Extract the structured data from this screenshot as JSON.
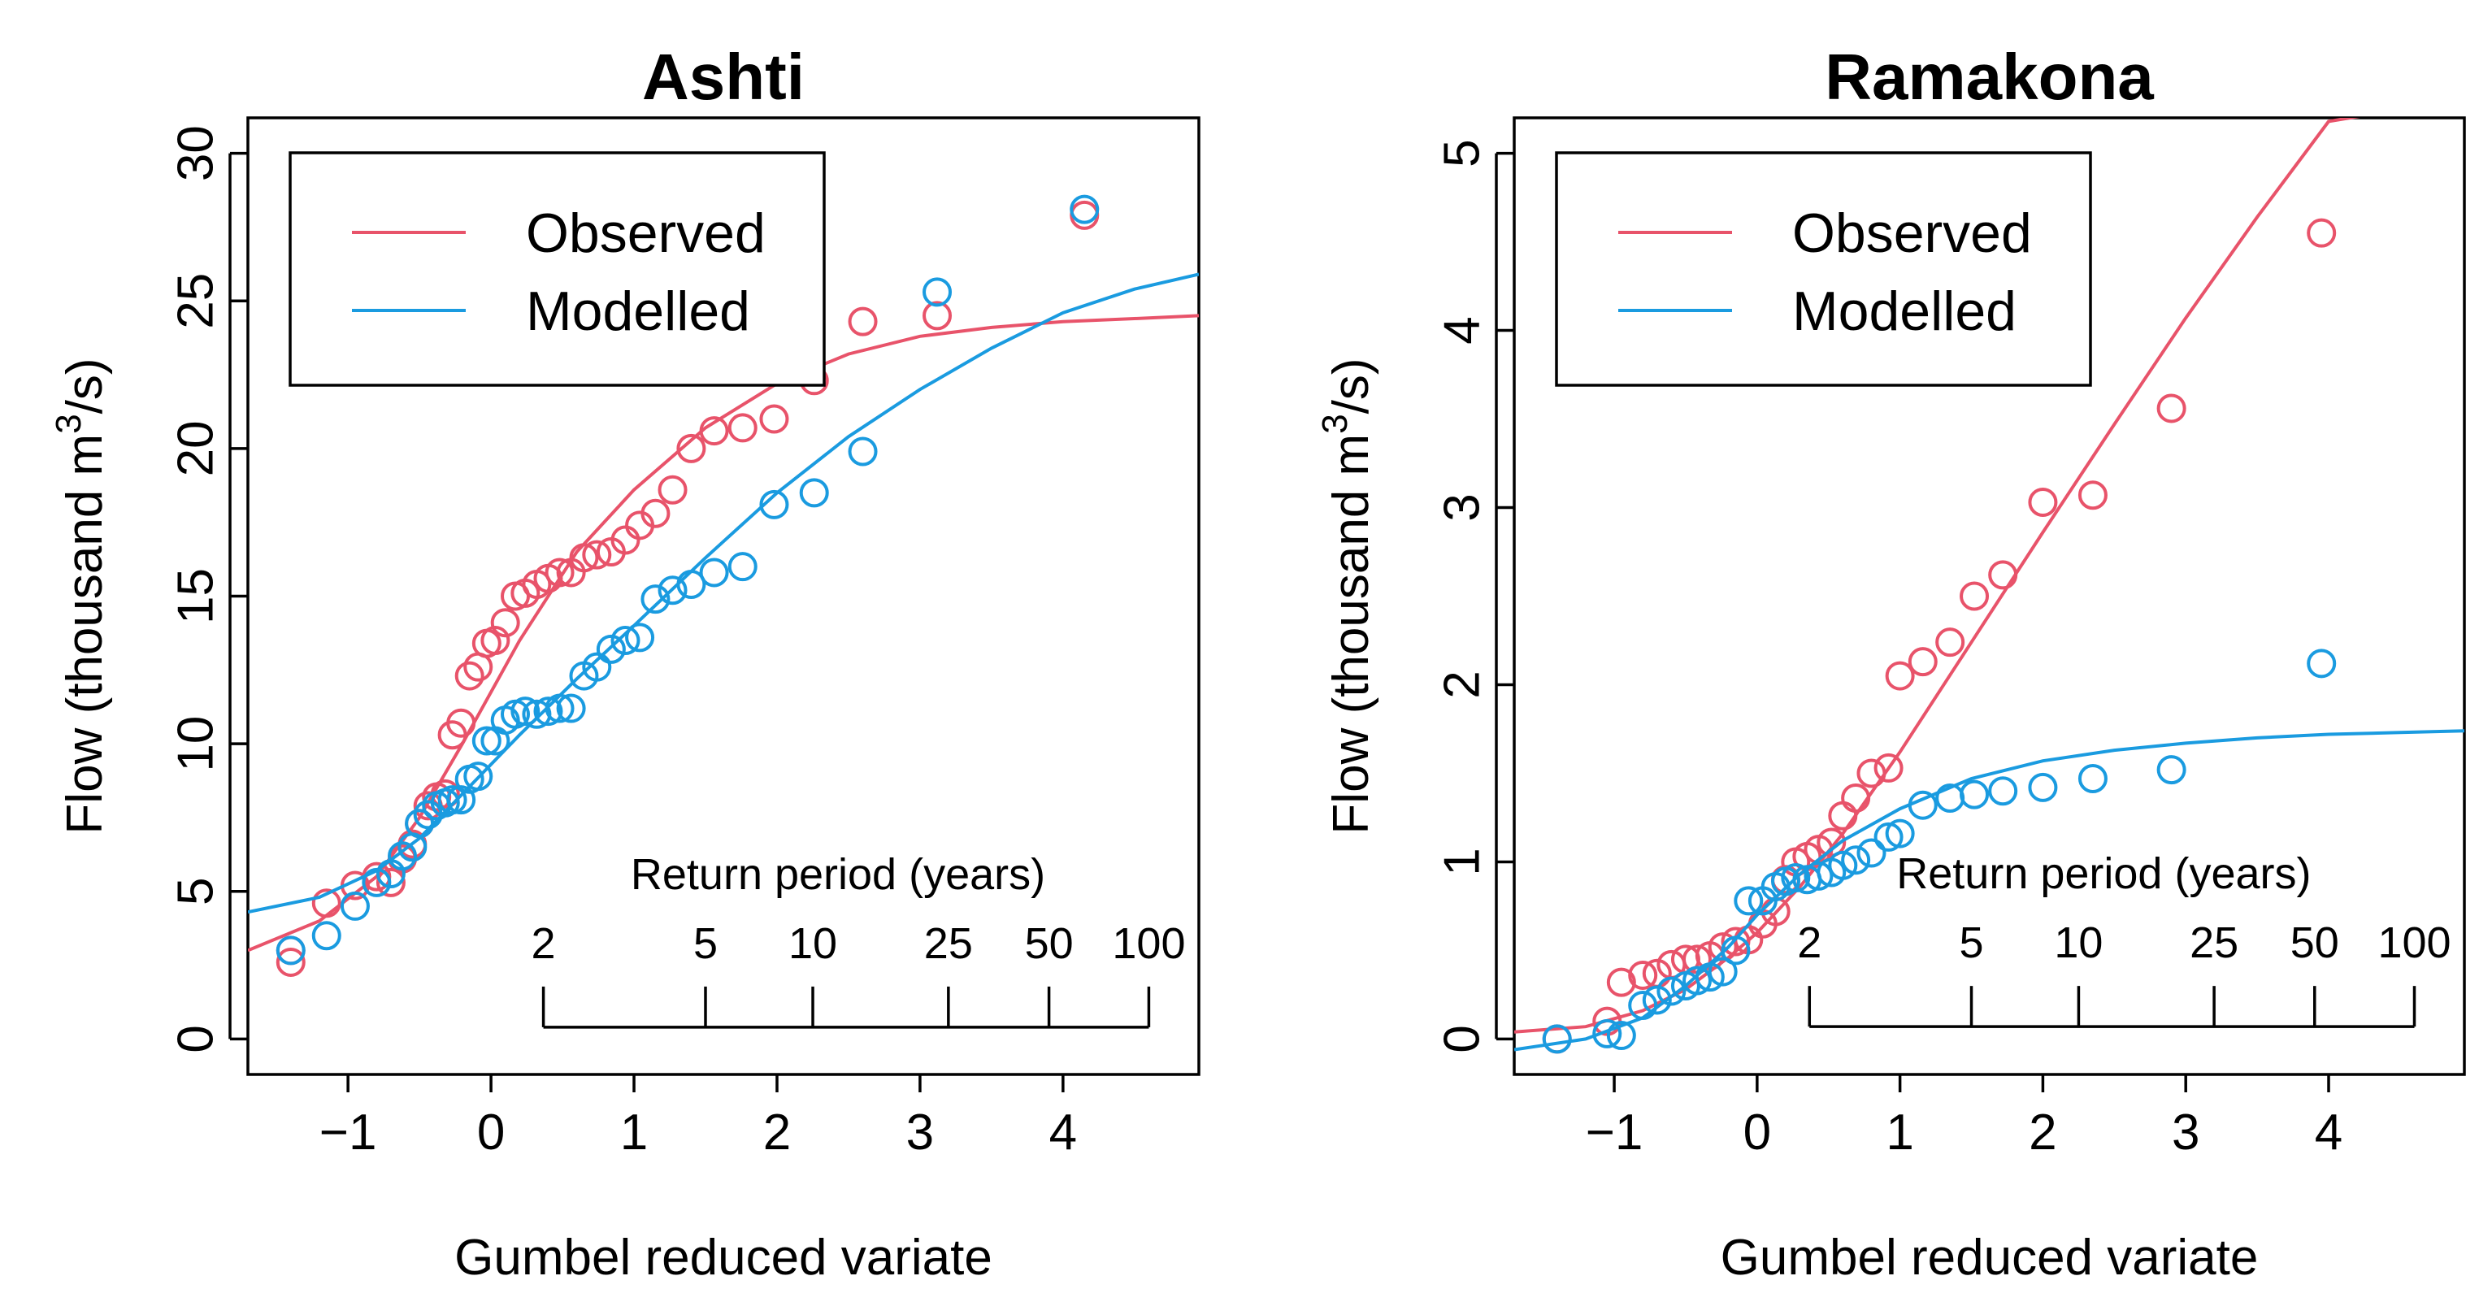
{
  "chart_data": [
    {
      "type": "scatter",
      "title": "Ashti",
      "xlabel": "Gumbel reduced variate",
      "ylabel_main": "Flow (thousand m",
      "ylabel_sup": "3",
      "ylabel_end": "/s)",
      "xlim": [
        -1.7,
        4.95
      ],
      "ylim": [
        -1.2,
        31.2
      ],
      "xticks": [
        "-1",
        "0",
        "1",
        "2",
        "3",
        "4"
      ],
      "xtick_values": [
        -1,
        0,
        1,
        2,
        3,
        4
      ],
      "yticks": [
        "0",
        "5",
        "10",
        "15",
        "20",
        "25",
        "30"
      ],
      "ytick_values": [
        0,
        5,
        10,
        15,
        20,
        25,
        30
      ],
      "legend": {
        "position": "top-left",
        "entries": [
          "Observed",
          "Modelled"
        ]
      },
      "return_period": {
        "title": "Return period (years)",
        "labels": [
          "2",
          "5",
          "10",
          "25",
          "50",
          "100"
        ],
        "years": [
          2,
          5,
          10,
          25,
          50,
          100
        ],
        "bar_y": 0.4
      },
      "series": [
        {
          "name": "Observed",
          "color": "#E8536A",
          "points": [
            [
              -1.4,
              2.6
            ],
            [
              -1.4,
              3.0
            ],
            [
              -1.15,
              4.6
            ],
            [
              -0.95,
              5.2
            ],
            [
              -0.8,
              5.5
            ],
            [
              -0.7,
              5.3
            ],
            [
              -0.62,
              6.1
            ],
            [
              -0.55,
              6.6
            ],
            [
              -0.5,
              7.3
            ],
            [
              -0.44,
              7.9
            ],
            [
              -0.38,
              8.2
            ],
            [
              -0.32,
              8.3
            ],
            [
              -0.27,
              10.3
            ],
            [
              -0.21,
              10.7
            ],
            [
              -0.15,
              12.3
            ],
            [
              -0.09,
              12.6
            ],
            [
              -0.03,
              13.4
            ],
            [
              0.03,
              13.5
            ],
            [
              0.1,
              14.1
            ],
            [
              0.17,
              15.0
            ],
            [
              0.24,
              15.1
            ],
            [
              0.32,
              15.4
            ],
            [
              0.4,
              15.6
            ],
            [
              0.48,
              15.8
            ],
            [
              0.56,
              15.8
            ],
            [
              0.65,
              16.3
            ],
            [
              0.74,
              16.4
            ],
            [
              0.84,
              16.5
            ],
            [
              0.94,
              16.9
            ],
            [
              1.04,
              17.4
            ],
            [
              1.15,
              17.8
            ],
            [
              1.27,
              18.6
            ],
            [
              1.4,
              20.0
            ],
            [
              1.56,
              20.6
            ],
            [
              1.76,
              20.7
            ],
            [
              1.98,
              21.0
            ],
            [
              2.26,
              22.3
            ],
            [
              2.6,
              24.3
            ],
            [
              3.12,
              24.5
            ],
            [
              4.15,
              27.9
            ]
          ],
          "curve": [
            [
              -1.7,
              3.0
            ],
            [
              -1.2,
              4.0
            ],
            [
              -0.8,
              5.5
            ],
            [
              -0.5,
              7.5
            ],
            [
              -0.2,
              10.0
            ],
            [
              0.2,
              13.5
            ],
            [
              0.6,
              16.5
            ],
            [
              1.0,
              18.6
            ],
            [
              1.5,
              20.7
            ],
            [
              2.0,
              22.2
            ],
            [
              2.5,
              23.2
            ],
            [
              3.0,
              23.8
            ],
            [
              3.5,
              24.1
            ],
            [
              4.0,
              24.3
            ],
            [
              4.5,
              24.4
            ],
            [
              4.95,
              24.5
            ]
          ]
        },
        {
          "name": "Modelled",
          "color": "#1A9BE0",
          "points": [
            [
              -1.4,
              3.0
            ],
            [
              -1.15,
              3.5
            ],
            [
              -0.95,
              4.5
            ],
            [
              -0.8,
              5.3
            ],
            [
              -0.7,
              5.6
            ],
            [
              -0.62,
              6.2
            ],
            [
              -0.55,
              6.5
            ],
            [
              -0.5,
              7.3
            ],
            [
              -0.44,
              7.6
            ],
            [
              -0.38,
              7.9
            ],
            [
              -0.32,
              8.0
            ],
            [
              -0.27,
              8.1
            ],
            [
              -0.21,
              8.1
            ],
            [
              -0.15,
              8.8
            ],
            [
              -0.09,
              8.9
            ],
            [
              -0.03,
              10.1
            ],
            [
              0.03,
              10.1
            ],
            [
              0.1,
              10.8
            ],
            [
              0.17,
              11.0
            ],
            [
              0.24,
              11.1
            ],
            [
              0.32,
              11.0
            ],
            [
              0.4,
              11.1
            ],
            [
              0.48,
              11.2
            ],
            [
              0.56,
              11.2
            ],
            [
              0.65,
              12.3
            ],
            [
              0.74,
              12.6
            ],
            [
              0.84,
              13.2
            ],
            [
              0.94,
              13.5
            ],
            [
              1.04,
              13.6
            ],
            [
              1.15,
              14.9
            ],
            [
              1.27,
              15.2
            ],
            [
              1.4,
              15.4
            ],
            [
              1.56,
              15.8
            ],
            [
              1.76,
              16.0
            ],
            [
              1.98,
              18.1
            ],
            [
              2.26,
              18.5
            ],
            [
              2.6,
              19.9
            ],
            [
              3.12,
              25.3
            ],
            [
              4.15,
              28.1
            ]
          ],
          "curve": [
            [
              -1.7,
              4.3
            ],
            [
              -1.2,
              4.8
            ],
            [
              -0.8,
              5.7
            ],
            [
              -0.5,
              6.8
            ],
            [
              -0.2,
              8.3
            ],
            [
              0.2,
              10.3
            ],
            [
              0.6,
              12.2
            ],
            [
              1.0,
              14.0
            ],
            [
              1.5,
              16.3
            ],
            [
              2.0,
              18.5
            ],
            [
              2.5,
              20.4
            ],
            [
              3.0,
              22.0
            ],
            [
              3.5,
              23.4
            ],
            [
              4.0,
              24.6
            ],
            [
              4.5,
              25.4
            ],
            [
              4.95,
              25.9
            ]
          ]
        }
      ]
    },
    {
      "type": "scatter",
      "title": "Ramakona",
      "xlabel": "Gumbel reduced variate",
      "ylabel_main": "Flow (thousand m",
      "ylabel_sup": "3",
      "ylabel_end": "/s)",
      "xlim": [
        -1.7,
        4.95
      ],
      "ylim": [
        -0.2,
        5.2
      ],
      "xticks": [
        "-1",
        "0",
        "1",
        "2",
        "3",
        "4"
      ],
      "xtick_values": [
        -1,
        0,
        1,
        2,
        3,
        4
      ],
      "yticks": [
        "0",
        "1",
        "2",
        "3",
        "4",
        "5"
      ],
      "ytick_values": [
        0,
        1,
        2,
        3,
        4,
        5
      ],
      "legend": {
        "position": "top-left",
        "entries": [
          "Observed",
          "Modelled"
        ]
      },
      "return_period": {
        "title": "Return period (years)",
        "labels": [
          "2",
          "5",
          "10",
          "25",
          "50",
          "100"
        ],
        "years": [
          2,
          5,
          10,
          25,
          50,
          100
        ],
        "bar_y": 0.07
      },
      "series": [
        {
          "name": "Observed",
          "color": "#E8536A",
          "points": [
            [
              -1.4,
              0.0
            ],
            [
              -1.05,
              0.1
            ],
            [
              -0.95,
              0.32
            ],
            [
              -0.8,
              0.36
            ],
            [
              -0.7,
              0.37
            ],
            [
              -0.6,
              0.42
            ],
            [
              -0.5,
              0.45
            ],
            [
              -0.42,
              0.45
            ],
            [
              -0.33,
              0.47
            ],
            [
              -0.24,
              0.52
            ],
            [
              -0.15,
              0.55
            ],
            [
              -0.06,
              0.56
            ],
            [
              0.04,
              0.65
            ],
            [
              0.13,
              0.72
            ],
            [
              0.2,
              0.9
            ],
            [
              0.27,
              1.0
            ],
            [
              0.35,
              1.03
            ],
            [
              0.43,
              1.07
            ],
            [
              0.52,
              1.11
            ],
            [
              0.6,
              1.26
            ],
            [
              0.69,
              1.36
            ],
            [
              0.8,
              1.5
            ],
            [
              0.92,
              1.53
            ],
            [
              1.0,
              2.05
            ],
            [
              1.16,
              2.13
            ],
            [
              1.35,
              2.24
            ],
            [
              1.52,
              2.5
            ],
            [
              1.72,
              2.62
            ],
            [
              2.0,
              3.03
            ],
            [
              2.35,
              3.07
            ],
            [
              2.9,
              3.56
            ],
            [
              3.95,
              4.55
            ]
          ],
          "curve": [
            [
              -1.7,
              0.04
            ],
            [
              -1.2,
              0.07
            ],
            [
              -0.8,
              0.16
            ],
            [
              -0.5,
              0.28
            ],
            [
              -0.2,
              0.46
            ],
            [
              0.0,
              0.6
            ],
            [
              0.3,
              0.86
            ],
            [
              0.6,
              1.16
            ],
            [
              1.0,
              1.62
            ],
            [
              1.5,
              2.24
            ],
            [
              2.0,
              2.86
            ],
            [
              2.5,
              3.47
            ],
            [
              3.0,
              4.07
            ],
            [
              3.5,
              4.64
            ],
            [
              4.0,
              5.18
            ],
            [
              4.45,
              5.24
            ]
          ]
        },
        {
          "name": "Modelled",
          "color": "#1A9BE0",
          "points": [
            [
              -1.4,
              0.0
            ],
            [
              -1.05,
              0.03
            ],
            [
              -0.95,
              0.02
            ],
            [
              -0.8,
              0.19
            ],
            [
              -0.7,
              0.22
            ],
            [
              -0.6,
              0.27
            ],
            [
              -0.5,
              0.3
            ],
            [
              -0.42,
              0.33
            ],
            [
              -0.33,
              0.35
            ],
            [
              -0.24,
              0.38
            ],
            [
              -0.15,
              0.5
            ],
            [
              -0.06,
              0.78
            ],
            [
              0.04,
              0.78
            ],
            [
              0.13,
              0.86
            ],
            [
              0.2,
              0.89
            ],
            [
              0.27,
              0.91
            ],
            [
              0.35,
              0.9
            ],
            [
              0.43,
              0.92
            ],
            [
              0.52,
              0.94
            ],
            [
              0.6,
              0.98
            ],
            [
              0.69,
              1.01
            ],
            [
              0.8,
              1.05
            ],
            [
              0.92,
              1.14
            ],
            [
              1.0,
              1.16
            ],
            [
              1.16,
              1.32
            ],
            [
              1.35,
              1.36
            ],
            [
              1.52,
              1.38
            ],
            [
              1.72,
              1.4
            ],
            [
              2.0,
              1.42
            ],
            [
              2.35,
              1.47
            ],
            [
              2.9,
              1.52
            ],
            [
              3.95,
              2.12
            ]
          ],
          "curve": [
            [
              -1.7,
              -0.06
            ],
            [
              -1.2,
              0.0
            ],
            [
              -0.8,
              0.12
            ],
            [
              -0.5,
              0.3
            ],
            [
              -0.2,
              0.52
            ],
            [
              0.0,
              0.7
            ],
            [
              0.3,
              0.93
            ],
            [
              0.6,
              1.12
            ],
            [
              1.0,
              1.3
            ],
            [
              1.5,
              1.47
            ],
            [
              2.0,
              1.57
            ],
            [
              2.5,
              1.63
            ],
            [
              3.0,
              1.67
            ],
            [
              3.5,
              1.7
            ],
            [
              4.0,
              1.72
            ],
            [
              4.5,
              1.73
            ],
            [
              4.95,
              1.74
            ]
          ]
        }
      ]
    }
  ]
}
